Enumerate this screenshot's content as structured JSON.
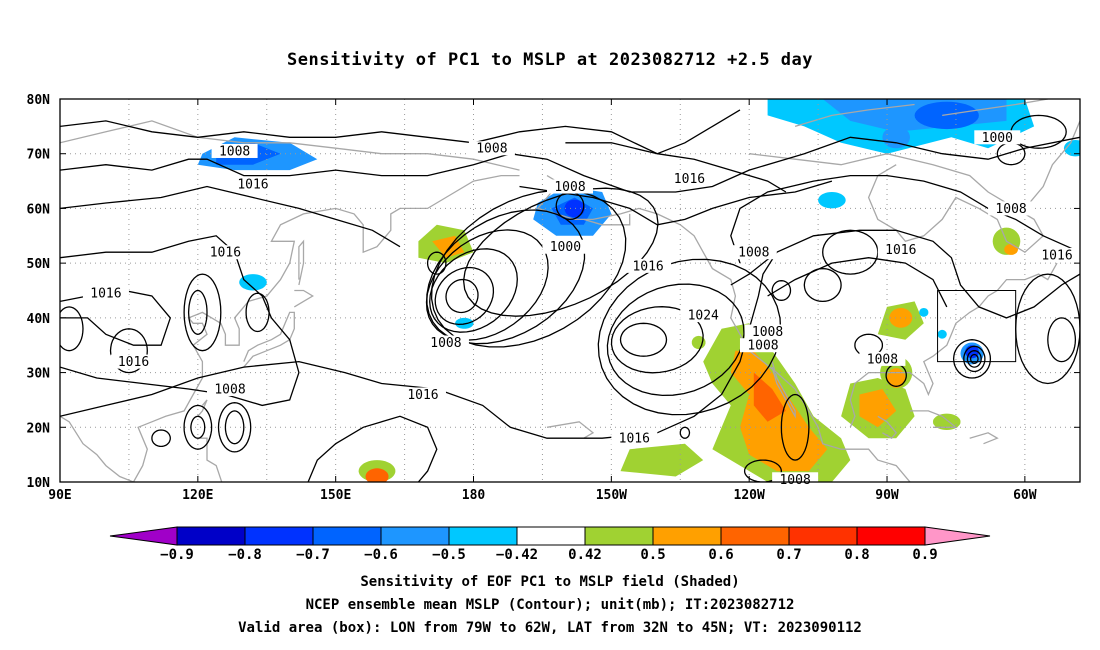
{
  "title": "Sensitivity of PC1 to MSLP at 2023082712 +2.5 day",
  "captions": [
    "Sensitivity of EOF PC1 to MSLP field (Shaded)",
    "NCEP ensemble mean MSLP (Contour); unit(mb); IT:2023082712",
    "Valid area (box): LON from 79W to 62W, LAT from 32N to 45N; VT: 2023090112"
  ],
  "map": {
    "lon_range": [
      90,
      312
    ],
    "lat_range": [
      10,
      80
    ],
    "lon_ticks": [
      {
        "lon": 90,
        "label": "90E"
      },
      {
        "lon": 120,
        "label": "120E"
      },
      {
        "lon": 150,
        "label": "150E"
      },
      {
        "lon": 180,
        "label": "180"
      },
      {
        "lon": 210,
        "label": "150W"
      },
      {
        "lon": 240,
        "label": "120W"
      },
      {
        "lon": 270,
        "label": "90W"
      },
      {
        "lon": 300,
        "label": "60W"
      }
    ],
    "lat_ticks": [
      {
        "lat": 80,
        "label": "80N"
      },
      {
        "lat": 70,
        "label": "70N"
      },
      {
        "lat": 60,
        "label": "60N"
      },
      {
        "lat": 50,
        "label": "50N"
      },
      {
        "lat": 40,
        "label": "40N"
      },
      {
        "lat": 30,
        "label": "30N"
      },
      {
        "lat": 20,
        "label": "20N"
      },
      {
        "lat": 10,
        "label": "10N"
      }
    ],
    "valid_box": {
      "lon_min": 281,
      "lon_max": 298,
      "lat_min": 32,
      "lat_max": 45
    },
    "contour_labels": [
      {
        "lon": 128,
        "lat": 70.5,
        "text": "1008"
      },
      {
        "lon": 132,
        "lat": 64.5,
        "text": "1016"
      },
      {
        "lon": 184,
        "lat": 71,
        "text": "1008"
      },
      {
        "lon": 201,
        "lat": 64,
        "text": "1008"
      },
      {
        "lon": 227,
        "lat": 65.5,
        "text": "1016"
      },
      {
        "lon": 294,
        "lat": 73,
        "text": "1000"
      },
      {
        "lon": 297,
        "lat": 60,
        "text": "1008"
      },
      {
        "lon": 126,
        "lat": 52,
        "text": "1016"
      },
      {
        "lon": 100,
        "lat": 44.5,
        "text": "1016"
      },
      {
        "lon": 106,
        "lat": 32,
        "text": "1016"
      },
      {
        "lon": 127,
        "lat": 27,
        "text": "1008"
      },
      {
        "lon": 169,
        "lat": 26,
        "text": "1016"
      },
      {
        "lon": 200,
        "lat": 53,
        "text": "1000"
      },
      {
        "lon": 218,
        "lat": 49.5,
        "text": "1016"
      },
      {
        "lon": 230,
        "lat": 40.5,
        "text": "1024"
      },
      {
        "lon": 241,
        "lat": 52,
        "text": "1008"
      },
      {
        "lon": 273,
        "lat": 52.5,
        "text": "1016"
      },
      {
        "lon": 307,
        "lat": 51.5,
        "text": "1016"
      },
      {
        "lon": 244,
        "lat": 37.5,
        "text": "1008"
      },
      {
        "lon": 243,
        "lat": 35,
        "text": "1008"
      },
      {
        "lon": 269,
        "lat": 32.5,
        "text": "1008"
      },
      {
        "lon": 174,
        "lat": 35.5,
        "text": "1008"
      },
      {
        "lon": 215,
        "lat": 18,
        "text": "1016"
      },
      {
        "lon": 250,
        "lat": 10.5,
        "text": "1008"
      }
    ]
  },
  "colorbar": {
    "labels": [
      "−0.9",
      "−0.8",
      "−0.7",
      "−0.6",
      "−0.5",
      "−0.42",
      "0.42",
      "0.5",
      "0.6",
      "0.7",
      "0.8",
      "0.9"
    ],
    "colors": [
      "#a000c8",
      "#0000c8",
      "#0032ff",
      "#0064ff",
      "#1e96ff",
      "#00c8ff",
      "#ffffff",
      "#a0d232",
      "#ffa000",
      "#ff6400",
      "#ff3200",
      "#ff0000",
      "#ff96c8"
    ]
  }
}
